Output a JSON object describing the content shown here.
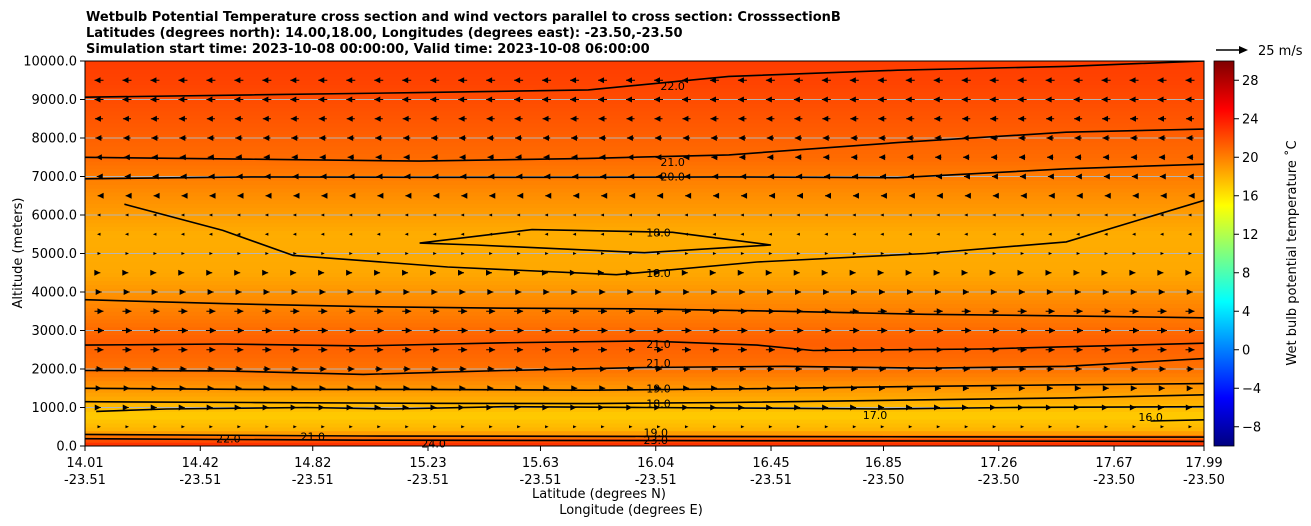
{
  "chart_data": {
    "type": "heatmap",
    "title_lines": [
      "Wetbulb Potential Temperature cross section and wind vectors parallel to cross section: CrosssectionB",
      "Latitudes (degrees north): 14.00,18.00, Longitudes (degrees east): -23.50,-23.50",
      "Simulation start time: 2023-10-08 00:00:00, Valid time: 2023-10-08 06:00:00"
    ],
    "xlabel_lat": "Latitude (degrees N)",
    "xlabel_lon": "Longitude (degrees E)",
    "ylabel": "Altitude (meters)",
    "x_range": [
      14.01,
      17.99
    ],
    "ylim": [
      0,
      10000
    ],
    "x_ticks": [
      {
        "lat": "14.01",
        "lon": "-23.51",
        "value": 14.01
      },
      {
        "lat": "14.42",
        "lon": "-23.51",
        "value": 14.42
      },
      {
        "lat": "14.82",
        "lon": "-23.51",
        "value": 14.82
      },
      {
        "lat": "15.23",
        "lon": "-23.51",
        "value": 15.23
      },
      {
        "lat": "15.63",
        "lon": "-23.51",
        "value": 15.63
      },
      {
        "lat": "16.04",
        "lon": "-23.51",
        "value": 16.04
      },
      {
        "lat": "16.45",
        "lon": "-23.51",
        "value": 16.45
      },
      {
        "lat": "16.85",
        "lon": "-23.50",
        "value": 16.85
      },
      {
        "lat": "17.26",
        "lon": "-23.50",
        "value": 17.26
      },
      {
        "lat": "17.67",
        "lon": "-23.50",
        "value": 17.67
      },
      {
        "lat": "17.99",
        "lon": "-23.50",
        "value": 17.99
      }
    ],
    "y_ticks": [
      {
        "label": "0.0",
        "value": 0
      },
      {
        "label": "1000.0",
        "value": 1000
      },
      {
        "label": "2000.0",
        "value": 2000
      },
      {
        "label": "3000.0",
        "value": 3000
      },
      {
        "label": "4000.0",
        "value": 4000
      },
      {
        "label": "5000.0",
        "value": 5000
      },
      {
        "label": "6000.0",
        "value": 6000
      },
      {
        "label": "7000.0",
        "value": 7000
      },
      {
        "label": "8000.0",
        "value": 8000
      },
      {
        "label": "9000.0",
        "value": 9000
      },
      {
        "label": "10000.0",
        "value": 10000
      }
    ],
    "grid": "horizontal",
    "colorbar": {
      "label": "Wet bulb potential temperature ˚C",
      "range": [
        -10,
        30
      ],
      "ticks": [
        {
          "label": "−8",
          "value": -8
        },
        {
          "label": "−4",
          "value": -4
        },
        {
          "label": "0",
          "value": 0
        },
        {
          "label": "4",
          "value": 4
        },
        {
          "label": "8",
          "value": 8
        },
        {
          "label": "12",
          "value": 12
        },
        {
          "label": "16",
          "value": 16
        },
        {
          "label": "20",
          "value": 20
        },
        {
          "label": "24",
          "value": 24
        },
        {
          "label": "28",
          "value": 28
        }
      ],
      "colormap": [
        "#00007f",
        "#0000ff",
        "#007fff",
        "#00ffff",
        "#7fff7f",
        "#ffff00",
        "#ff7f00",
        "#ff0000",
        "#7f0000"
      ]
    },
    "vector_key": {
      "label": "25 m/s",
      "speed": 25
    },
    "field_profile": [
      {
        "alt": 0,
        "t": 23.5
      },
      {
        "alt": 150,
        "t": 22
      },
      {
        "alt": 400,
        "t": 18
      },
      {
        "alt": 800,
        "t": 17
      },
      {
        "alt": 1300,
        "t": 18.5
      },
      {
        "alt": 2000,
        "t": 20.5
      },
      {
        "alt": 2700,
        "t": 21.3
      },
      {
        "alt": 3500,
        "t": 20
      },
      {
        "alt": 4500,
        "t": 18.4
      },
      {
        "alt": 5500,
        "t": 18.2
      },
      {
        "alt": 6500,
        "t": 19.4
      },
      {
        "alt": 7500,
        "t": 20.8
      },
      {
        "alt": 8500,
        "t": 21.6
      },
      {
        "alt": 9500,
        "t": 22.4
      },
      {
        "alt": 10000,
        "t": 22.6
      }
    ],
    "contours": [
      {
        "level": 16.0,
        "points": [
          [
            17.8,
            650
          ],
          [
            17.99,
            680
          ]
        ]
      },
      {
        "level": 17.0,
        "points": [
          [
            14.05,
            900
          ],
          [
            14.3,
            960
          ],
          [
            14.8,
            1000
          ],
          [
            15.1,
            960
          ],
          [
            15.5,
            1020
          ],
          [
            16.0,
            1000
          ],
          [
            16.5,
            980
          ],
          [
            16.85,
            960
          ],
          [
            17.3,
            1000
          ],
          [
            17.99,
            1020
          ]
        ]
      },
      {
        "level": 18.0,
        "points": [
          [
            14.01,
            1150
          ],
          [
            14.6,
            1130
          ],
          [
            15.2,
            1110
          ],
          [
            15.8,
            1100
          ],
          [
            16.3,
            1130
          ],
          [
            16.9,
            1190
          ],
          [
            17.5,
            1250
          ],
          [
            17.99,
            1330
          ]
        ]
      },
      {
        "level": 19.0,
        "points": [
          [
            14.01,
            1500
          ],
          [
            14.6,
            1470
          ],
          [
            15.2,
            1470
          ],
          [
            15.8,
            1450
          ],
          [
            16.3,
            1480
          ],
          [
            16.9,
            1540
          ],
          [
            17.5,
            1590
          ],
          [
            17.99,
            1620
          ]
        ]
      },
      {
        "level": 20.0,
        "points": [
          [
            14.01,
            1960
          ],
          [
            14.5,
            1950
          ],
          [
            15.0,
            1860
          ],
          [
            15.5,
            1960
          ],
          [
            16.0,
            2040
          ],
          [
            16.5,
            2070
          ],
          [
            17.0,
            2020
          ],
          [
            17.5,
            2070
          ],
          [
            17.99,
            2270
          ]
        ]
      },
      {
        "level": 21.0,
        "points": [
          [
            14.01,
            2620
          ],
          [
            14.5,
            2650
          ],
          [
            15.0,
            2600
          ],
          [
            15.5,
            2680
          ],
          [
            16.0,
            2730
          ],
          [
            16.4,
            2620
          ],
          [
            16.6,
            2480
          ],
          [
            17.2,
            2520
          ],
          [
            17.99,
            2670
          ]
        ]
      },
      {
        "level": 21.0,
        "points": [
          [
            14.01,
            3800
          ],
          [
            14.5,
            3700
          ],
          [
            15.0,
            3620
          ],
          [
            15.5,
            3580
          ],
          [
            16.0,
            3560
          ],
          [
            16.5,
            3500
          ],
          [
            17.0,
            3420
          ],
          [
            17.5,
            3380
          ],
          [
            17.99,
            3330
          ]
        ]
      },
      {
        "level": 18.0,
        "points": [
          [
            14.15,
            6280
          ],
          [
            14.5,
            5600
          ],
          [
            14.75,
            4950
          ],
          [
            15.3,
            4650
          ],
          [
            15.9,
            4450
          ],
          [
            16.4,
            4780
          ],
          [
            17.0,
            5000
          ],
          [
            17.5,
            5300
          ],
          [
            17.99,
            6380
          ]
        ]
      },
      {
        "level": 18.0,
        "points": [
          [
            15.2,
            5270
          ],
          [
            15.6,
            5620
          ],
          [
            16.1,
            5550
          ],
          [
            16.45,
            5220
          ],
          [
            16.0,
            5020
          ],
          [
            15.4,
            5220
          ],
          [
            15.2,
            5270
          ]
        ]
      },
      {
        "level": 20.0,
        "points": [
          [
            14.01,
            6940
          ],
          [
            14.6,
            6990
          ],
          [
            15.2,
            6980
          ],
          [
            15.8,
            6980
          ],
          [
            16.3,
            6990
          ],
          [
            16.9,
            6970
          ],
          [
            17.5,
            7200
          ],
          [
            17.99,
            7320
          ]
        ]
      },
      {
        "level": 21.0,
        "points": [
          [
            14.01,
            7500
          ],
          [
            14.6,
            7450
          ],
          [
            15.2,
            7400
          ],
          [
            15.8,
            7470
          ],
          [
            16.3,
            7560
          ],
          [
            16.9,
            7880
          ],
          [
            17.5,
            8150
          ],
          [
            17.99,
            8230
          ]
        ]
      },
      {
        "level": 22.0,
        "points": [
          [
            14.01,
            9060
          ],
          [
            14.6,
            9120
          ],
          [
            15.2,
            9180
          ],
          [
            15.8,
            9250
          ],
          [
            16.3,
            9600
          ],
          [
            16.9,
            9760
          ],
          [
            17.5,
            9860
          ],
          [
            17.99,
            10000
          ]
        ]
      },
      {
        "level": 23.0,
        "points": [
          [
            14.01,
            300
          ],
          [
            15.0,
            260
          ],
          [
            16.0,
            250
          ],
          [
            17.0,
            240
          ],
          [
            17.99,
            230
          ]
        ]
      },
      {
        "level": 24.0,
        "points": [
          [
            14.01,
            190
          ],
          [
            15.0,
            150
          ],
          [
            16.0,
            140
          ],
          [
            17.0,
            130
          ],
          [
            17.99,
            120
          ]
        ]
      }
    ],
    "contour_labels": [
      {
        "text": "22.0",
        "x": 16.1,
        "alt": 9350
      },
      {
        "text": "21.0",
        "x": 16.1,
        "alt": 7380
      },
      {
        "text": "20.0",
        "x": 16.1,
        "alt": 7000
      },
      {
        "text": "18.0",
        "x": 16.05,
        "alt": 5550
      },
      {
        "text": "18.0",
        "x": 16.05,
        "alt": 4500
      },
      {
        "text": "21.0",
        "x": 16.05,
        "alt": 2650
      },
      {
        "text": "21.0",
        "x": 16.05,
        "alt": 2150
      },
      {
        "text": "19.0",
        "x": 16.05,
        "alt": 1500
      },
      {
        "text": "18.0",
        "x": 16.05,
        "alt": 1100
      },
      {
        "text": "17.0",
        "x": 16.82,
        "alt": 800
      },
      {
        "text": "16.0",
        "x": 17.8,
        "alt": 750
      },
      {
        "text": "22.0",
        "x": 14.52,
        "alt": 200
      },
      {
        "text": "21.0",
        "x": 14.82,
        "alt": 250
      },
      {
        "text": "24.0",
        "x": 15.25,
        "alt": 70
      },
      {
        "text": "19.0",
        "x": 16.04,
        "alt": 350
      },
      {
        "text": "23.0",
        "x": 16.04,
        "alt": 150
      }
    ],
    "wind": {
      "rows_alt": [
        9500,
        9000,
        8500,
        8000,
        7500,
        7000,
        6500,
        6000,
        5500,
        5000,
        4500,
        4000,
        3500,
        3000,
        2500,
        2000,
        1500,
        1000,
        500
      ],
      "u_ms": [
        -5,
        -5,
        -4.5,
        -4,
        -3.5,
        -2.5,
        -1.5,
        -1,
        -0.5,
        0.5,
        1.5,
        3,
        5,
        5.5,
        5,
        4,
        3,
        2,
        1
      ]
    }
  }
}
